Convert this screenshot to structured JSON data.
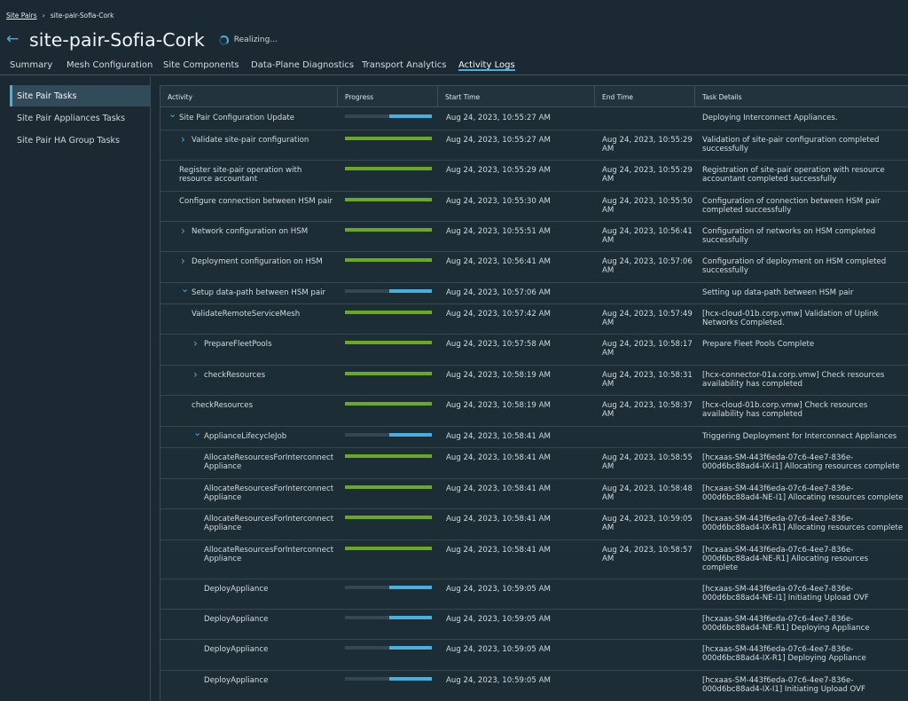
{
  "breadcrumb": {
    "root": "Site Pairs",
    "current": "site-pair-Sofia-Cork"
  },
  "header": {
    "title": "site-pair-Sofia-Cork",
    "status": "Realizing..."
  },
  "tabs": [
    "Summary",
    "Mesh Configuration",
    "Site Components",
    "Data-Plane Diagnostics",
    "Transport Analytics",
    "Activity Logs"
  ],
  "active_tab": "Activity Logs",
  "sidebar": {
    "items": [
      "Site Pair Tasks",
      "Site Pair Appliances Tasks",
      "Site Pair HA Group Tasks"
    ],
    "active": "Site Pair Tasks"
  },
  "colors": {
    "accent": "#49aee0",
    "complete": "#6aaa22",
    "in_progress": "#49aee0"
  },
  "table": {
    "headers": [
      "Activity",
      "Progress",
      "Start Time",
      "End Time",
      "Task Details"
    ],
    "rows": [
      {
        "activity": "Site Pair Configuration Update",
        "icon": "chevron-down-icon",
        "progress_state": "in-progress",
        "start": "Aug 24, 2023, 10:55:27 AM",
        "end": "",
        "details": "Deploying Interconnect Appliances."
      },
      {
        "activity": "Validate site-pair configuration",
        "icon": "chevron-right-icon",
        "progress_state": "complete",
        "start": "Aug 24, 2023, 10:55:27 AM",
        "end": "Aug 24, 2023, 10:55:29 AM",
        "details": "Validation of site-pair configuration completed successfully"
      },
      {
        "activity": "Register site-pair operation with resource accountant",
        "icon": "",
        "progress_state": "complete",
        "start": "Aug 24, 2023, 10:55:29 AM",
        "end": "Aug 24, 2023, 10:55:29 AM",
        "details": "Registration of site-pair operation with resource accountant completed successfully"
      },
      {
        "activity": "Configure connection between HSM pair",
        "icon": "",
        "progress_state": "complete",
        "start": "Aug 24, 2023, 10:55:30 AM",
        "end": "Aug 24, 2023, 10:55:50 AM",
        "details": "Configuration of connection between HSM pair completed successfully"
      },
      {
        "activity": "Network configuration on HSM",
        "icon": "chevron-right-icon",
        "progress_state": "complete",
        "start": "Aug 24, 2023, 10:55:51 AM",
        "end": "Aug 24, 2023, 10:56:41 AM",
        "details": "Configuration of networks on HSM completed successfully"
      },
      {
        "activity": "Deployment configuration on HSM",
        "icon": "chevron-right-icon",
        "progress_state": "complete",
        "start": "Aug 24, 2023, 10:56:41 AM",
        "end": "Aug 24, 2023, 10:57:06 AM",
        "details": "Configuration of deployment on HSM completed successfully"
      },
      {
        "activity": "Setup data-path between HSM pair",
        "icon": "chevron-down-icon",
        "progress_state": "in-progress",
        "start": "Aug 24, 2023, 10:57:06 AM",
        "end": "",
        "details": "Setting up data-path between HSM pair"
      },
      {
        "activity": "ValidateRemoteServiceMesh",
        "icon": "",
        "progress_state": "complete",
        "start": "Aug 24, 2023, 10:57:42 AM",
        "end": "Aug 24, 2023, 10:57:49 AM",
        "details": "[hcx-cloud-01b.corp.vmw] Validation of Uplink Networks Completed."
      },
      {
        "activity": "PrepareFleetPools",
        "icon": "chevron-right-icon",
        "progress_state": "complete",
        "start": "Aug 24, 2023, 10:57:58 AM",
        "end": "Aug 24, 2023, 10:58:17 AM",
        "details": "Prepare Fleet Pools Complete"
      },
      {
        "activity": "checkResources",
        "icon": "chevron-right-icon",
        "progress_state": "complete",
        "start": "Aug 24, 2023, 10:58:19 AM",
        "end": "Aug 24, 2023, 10:58:31 AM",
        "details": "[hcx-connector-01a.corp.vmw] Check resources availability has completed"
      },
      {
        "activity": "checkResources",
        "icon": "",
        "progress_state": "complete",
        "start": "Aug 24, 2023, 10:58:19 AM",
        "end": "Aug 24, 2023, 10:58:37 AM",
        "details": "[hcx-cloud-01b.corp.vmw] Check resources availability has completed"
      },
      {
        "activity": "ApplianceLifecycleJob",
        "icon": "chevron-down-icon",
        "progress_state": "in-progress",
        "start": "Aug 24, 2023, 10:58:41 AM",
        "end": "",
        "details": "Triggering Deployment for Interconnect Appliances"
      },
      {
        "activity": "AllocateResourcesForInterconnect Appliance",
        "icon": "",
        "progress_state": "complete",
        "start": "Aug 24, 2023, 10:58:41 AM",
        "end": "Aug 24, 2023, 10:58:55 AM",
        "details": "[hcxaas-SM-443f6eda-07c6-4ee7-836e-000d6bc88ad4-IX-I1] Allocating resources complete"
      },
      {
        "activity": "AllocateResourcesForInterconnect Appliance",
        "icon": "",
        "progress_state": "complete",
        "start": "Aug 24, 2023, 10:58:41 AM",
        "end": "Aug 24, 2023, 10:58:48 AM",
        "details": "[hcxaas-SM-443f6eda-07c6-4ee7-836e-000d6bc88ad4-NE-I1] Allocating resources complete"
      },
      {
        "activity": "AllocateResourcesForInterconnect Appliance",
        "icon": "",
        "progress_state": "complete",
        "start": "Aug 24, 2023, 10:58:41 AM",
        "end": "Aug 24, 2023, 10:59:05 AM",
        "details": "[hcxaas-SM-443f6eda-07c6-4ee7-836e-000d6bc88ad4-IX-R1] Allocating resources complete"
      },
      {
        "activity": "AllocateResourcesForInterconnect Appliance",
        "icon": "",
        "progress_state": "complete",
        "start": "Aug 24, 2023, 10:58:41 AM",
        "end": "Aug 24, 2023, 10:58:57 AM",
        "details": "[hcxaas-SM-443f6eda-07c6-4ee7-836e-000d6bc88ad4-NE-R1] Allocating resources complete"
      },
      {
        "activity": "DeployAppliance",
        "icon": "",
        "progress_state": "in-progress",
        "start": "Aug 24, 2023, 10:59:05 AM",
        "end": "",
        "details": "[hcxaas-SM-443f6eda-07c6-4ee7-836e-000d6bc88ad4-NE-I1] Initiating Upload OVF"
      },
      {
        "activity": "DeployAppliance",
        "icon": "",
        "progress_state": "in-progress",
        "start": "Aug 24, 2023, 10:59:05 AM",
        "end": "",
        "details": "[hcxaas-SM-443f6eda-07c6-4ee7-836e-000d6bc88ad4-NE-R1] Deploying Appliance"
      },
      {
        "activity": "DeployAppliance",
        "icon": "",
        "progress_state": "in-progress",
        "start": "Aug 24, 2023, 10:59:05 AM",
        "end": "",
        "details": "[hcxaas-SM-443f6eda-07c6-4ee7-836e-000d6bc88ad4-IX-R1] Deploying Appliance"
      },
      {
        "activity": "DeployAppliance",
        "icon": "",
        "progress_state": "in-progress",
        "start": "Aug 24, 2023, 10:59:05 AM",
        "end": "",
        "details": "[hcxaas-SM-443f6eda-07c6-4ee7-836e-000d6bc88ad4-IX-I1] Initiating Upload OVF"
      }
    ]
  }
}
